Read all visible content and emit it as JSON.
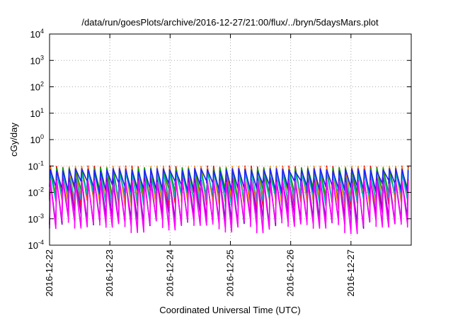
{
  "chart_data": {
    "type": "line",
    "title": "/data/run/goesPlots/archive/2016-12-27/21:00/flux/../bryn/5daysMars.plot",
    "xlabel": "Coordinated Universal Time (UTC)",
    "ylabel": "cGy/day",
    "x_range": [
      "2016-12-22T00:00",
      "2016-12-28T00:00"
    ],
    "ylim": [
      0.0001,
      10000
    ],
    "y_scale": "log",
    "grid": true,
    "legend": "none",
    "y_ticks": [
      {
        "value": 0.0001,
        "base": "10",
        "exp": "-4"
      },
      {
        "value": 0.001,
        "base": "10",
        "exp": "-3"
      },
      {
        "value": 0.01,
        "base": "10",
        "exp": "-2"
      },
      {
        "value": 0.1,
        "base": "10",
        "exp": "-1"
      },
      {
        "value": 1,
        "base": "10",
        "exp": "0"
      },
      {
        "value": 10,
        "base": "10",
        "exp": "1"
      },
      {
        "value": 100,
        "base": "10",
        "exp": "2"
      },
      {
        "value": 1000,
        "base": "10",
        "exp": "3"
      },
      {
        "value": 10000,
        "base": "10",
        "exp": "4"
      }
    ],
    "x_ticks": [
      {
        "value": "2016-12-22",
        "label": "2016-12-22"
      },
      {
        "value": "2016-12-23",
        "label": "2016-12-23"
      },
      {
        "value": "2016-12-24",
        "label": "2016-12-24"
      },
      {
        "value": "2016-12-25",
        "label": "2016-12-25"
      },
      {
        "value": "2016-12-26",
        "label": "2016-12-26"
      },
      {
        "value": "2016-12-27",
        "label": "2016-12-27"
      }
    ],
    "cycle_hours": 2.5,
    "series": [
      {
        "color": "#ff0000",
        "peak": 0.1,
        "trough": 0.0055
      },
      {
        "color": "#ff8c00",
        "peak": 0.098,
        "trough": 0.006
      },
      {
        "color": "#00a000",
        "peak": 0.085,
        "trough": 0.012
      },
      {
        "color": "#00c0c0",
        "peak": 0.055,
        "trough": 0.0075
      },
      {
        "color": "#2020ff",
        "peak": 0.08,
        "trough": 0.02
      },
      {
        "color": "#8000c0",
        "peak": 0.035,
        "trough": 0.0012
      },
      {
        "color": "#ff00ff",
        "peak": 0.028,
        "trough": 0.00075
      }
    ]
  }
}
